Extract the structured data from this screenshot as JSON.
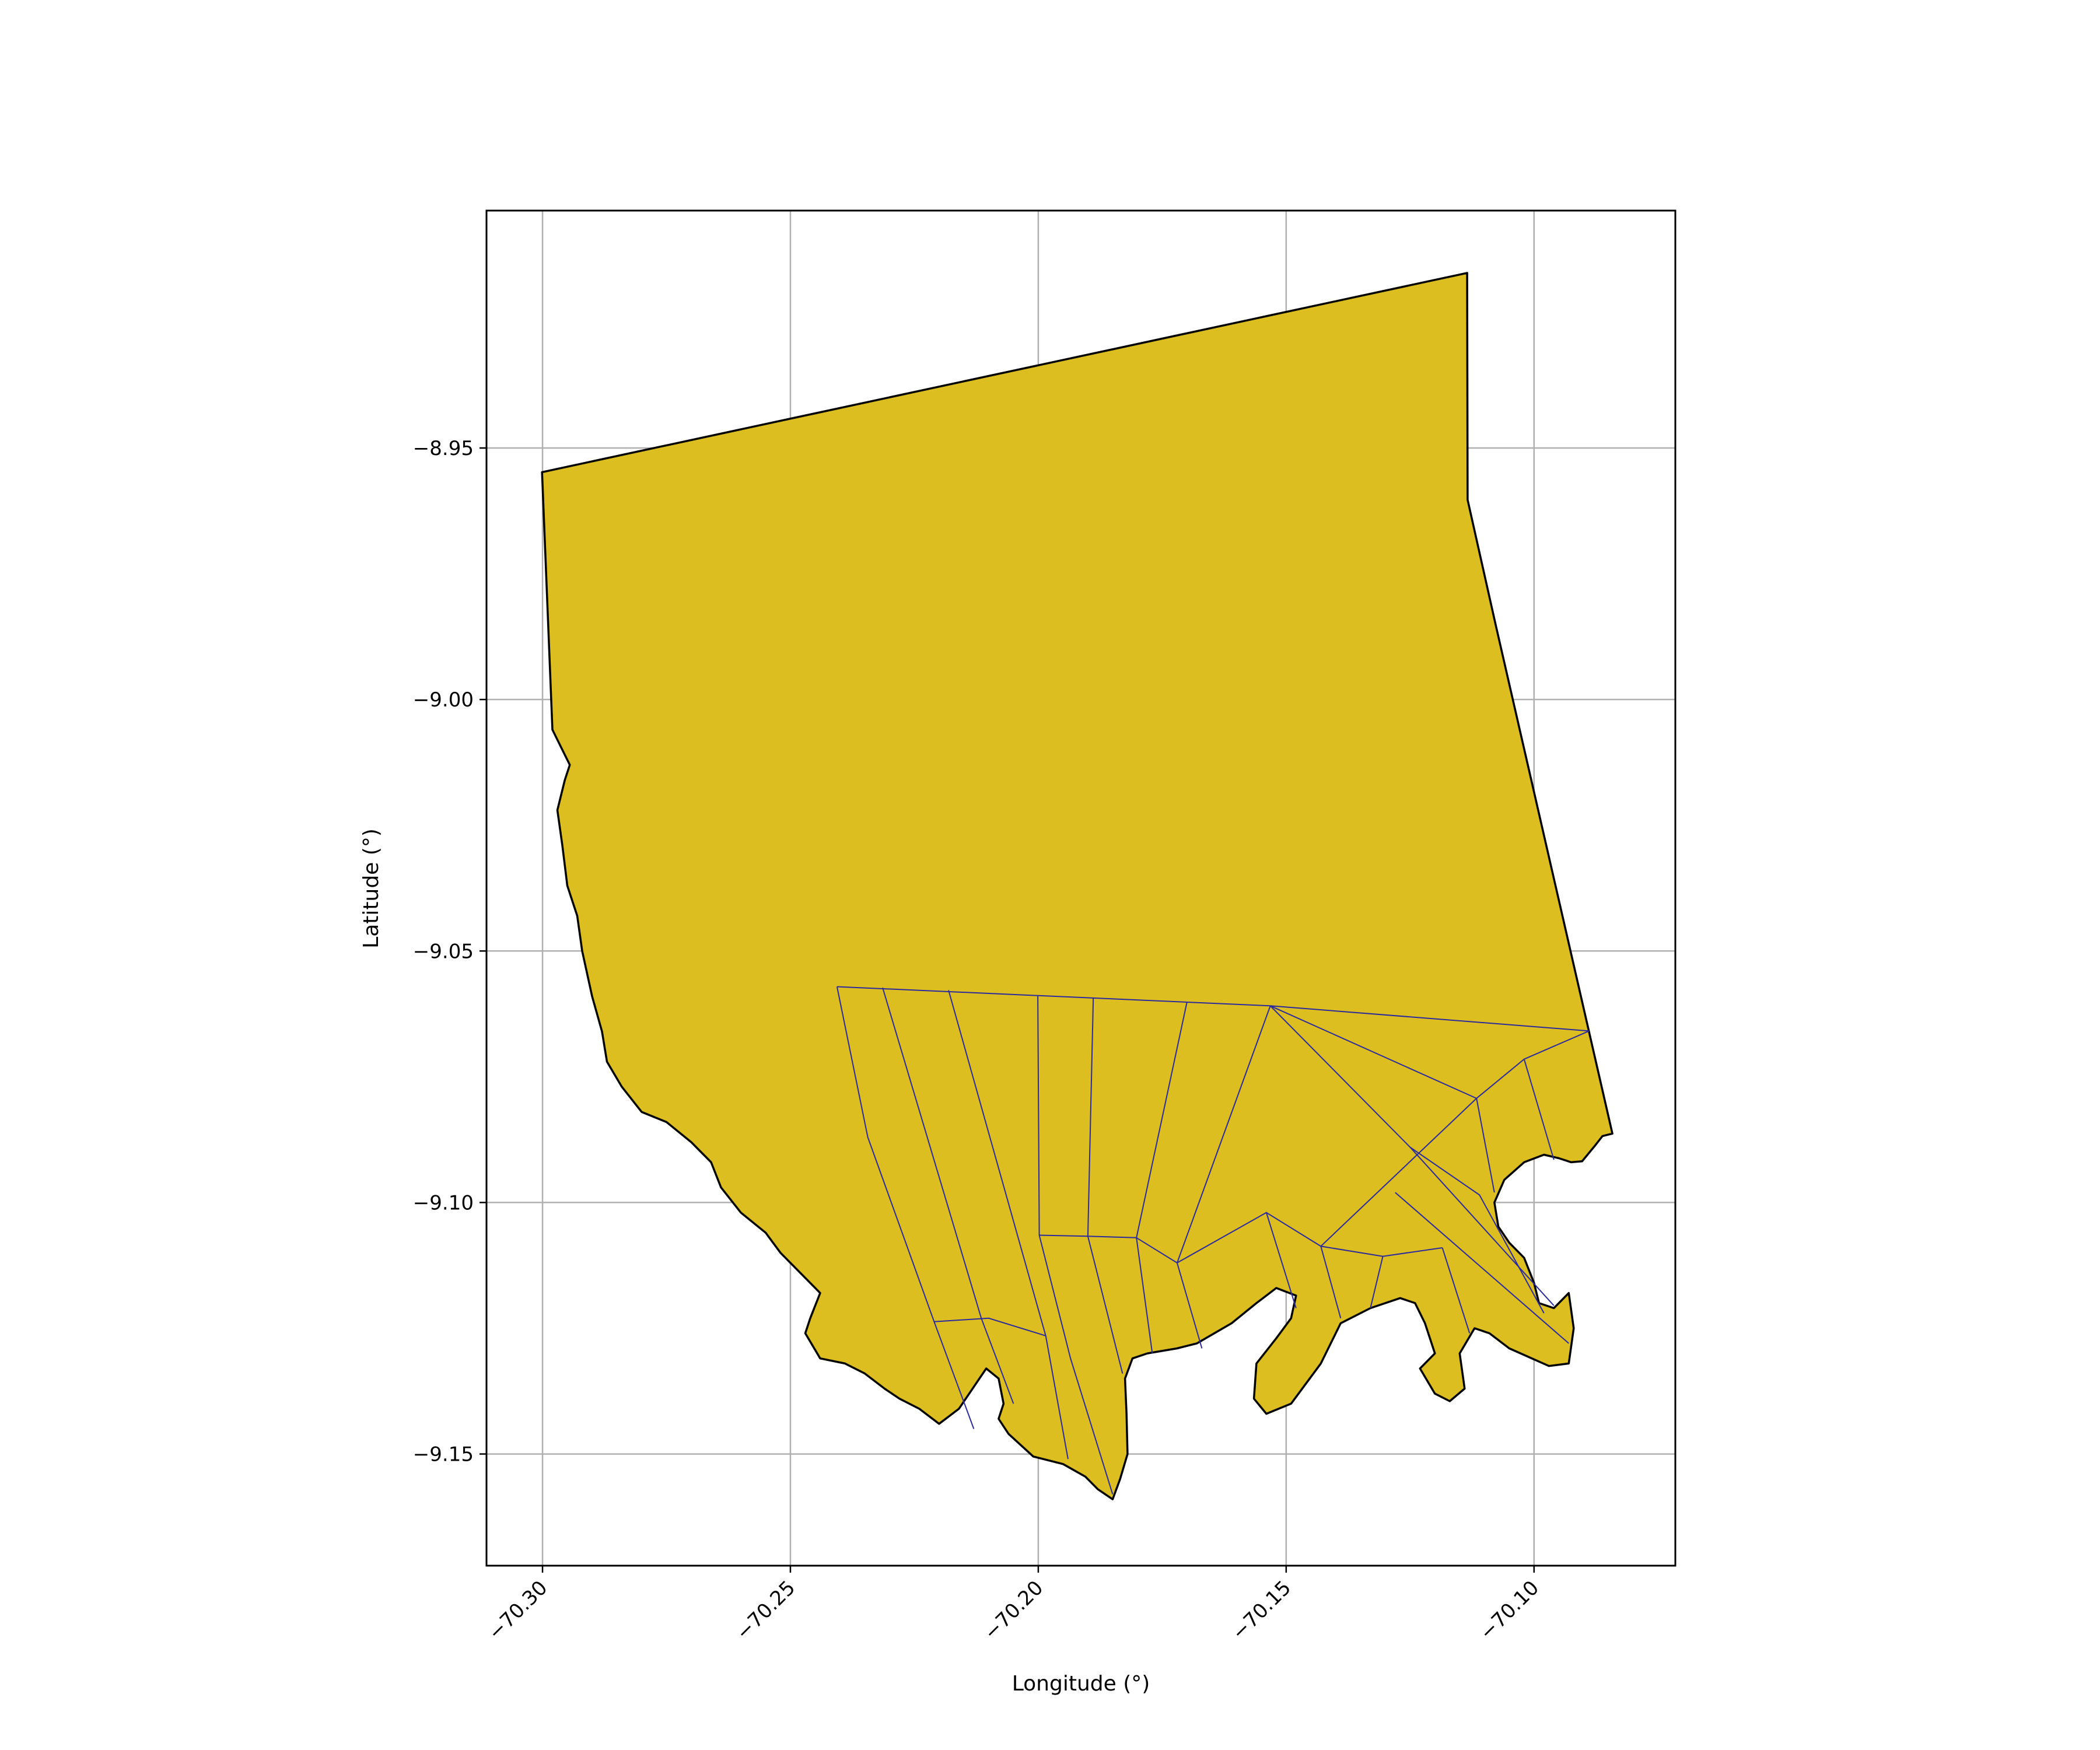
{
  "chart_data": {
    "type": "map",
    "title": "",
    "xlabel": "Longitude (°)",
    "ylabel": "Latitude (°)",
    "xlim": [
      -70.3113,
      -70.0715
    ],
    "ylim": [
      -9.1722,
      -8.9028
    ],
    "grid": true,
    "x_ticks": [
      {
        "value": -70.3,
        "label": "−70.30"
      },
      {
        "value": -70.25,
        "label": "−70.25"
      },
      {
        "value": -70.2,
        "label": "−70.20"
      },
      {
        "value": -70.15,
        "label": "−70.15"
      },
      {
        "value": -70.1,
        "label": "−70.10"
      }
    ],
    "y_ticks": [
      {
        "value": -8.95,
        "label": "−8.95"
      },
      {
        "value": -9.0,
        "label": "−9.00"
      },
      {
        "value": -9.05,
        "label": "−9.05"
      },
      {
        "value": -9.1,
        "label": "−9.10"
      },
      {
        "value": -9.15,
        "label": "−9.15"
      }
    ],
    "colors": {
      "region_fill": "#dcbe20",
      "boundary": "#000000",
      "subdivision": "#2a2a9e",
      "grid": "#b0b0b0",
      "axes": "#000000"
    },
    "boundary": [
      [
        -70.3001,
        -8.9548
      ],
      [
        -70.1135,
        -8.9152
      ],
      [
        -70.1134,
        -8.9603
      ],
      [
        -70.1077,
        -8.9853
      ],
      [
        -70.0842,
        -9.0863
      ],
      [
        -70.0862,
        -9.0868
      ],
      [
        -70.0878,
        -9.0888
      ],
      [
        -70.0903,
        -9.0918
      ],
      [
        -70.0925,
        -9.092
      ],
      [
        -70.095,
        -9.0912
      ],
      [
        -70.098,
        -9.0905
      ],
      [
        -70.102,
        -9.092
      ],
      [
        -70.106,
        -9.0955
      ],
      [
        -70.108,
        -9.1
      ],
      [
        -70.1072,
        -9.1048
      ],
      [
        -70.105,
        -9.108
      ],
      [
        -70.102,
        -9.111
      ],
      [
        -70.1,
        -9.116
      ],
      [
        -70.099,
        -9.12
      ],
      [
        -70.096,
        -9.121
      ],
      [
        -70.093,
        -9.118
      ],
      [
        -70.092,
        -9.125
      ],
      [
        -70.093,
        -9.132
      ],
      [
        -70.097,
        -9.1325
      ],
      [
        -70.105,
        -9.129
      ],
      [
        -70.109,
        -9.126
      ],
      [
        -70.112,
        -9.125
      ],
      [
        -70.115,
        -9.13
      ],
      [
        -70.114,
        -9.137
      ],
      [
        -70.117,
        -9.1395
      ],
      [
        -70.12,
        -9.138
      ],
      [
        -70.123,
        -9.133
      ],
      [
        -70.12,
        -9.13
      ],
      [
        -70.122,
        -9.124
      ],
      [
        -70.124,
        -9.12
      ],
      [
        -70.127,
        -9.119
      ],
      [
        -70.133,
        -9.121
      ],
      [
        -70.139,
        -9.124
      ],
      [
        -70.143,
        -9.132
      ],
      [
        -70.149,
        -9.14
      ],
      [
        -70.154,
        -9.142
      ],
      [
        -70.1565,
        -9.139
      ],
      [
        -70.156,
        -9.132
      ],
      [
        -70.152,
        -9.127
      ],
      [
        -70.149,
        -9.123
      ],
      [
        -70.148,
        -9.1185
      ],
      [
        -70.152,
        -9.117
      ],
      [
        -70.156,
        -9.12
      ],
      [
        -70.161,
        -9.124
      ],
      [
        -70.168,
        -9.128
      ],
      [
        -70.172,
        -9.129
      ],
      [
        -70.178,
        -9.13
      ],
      [
        -70.181,
        -9.131
      ],
      [
        -70.1825,
        -9.135
      ],
      [
        -70.1822,
        -9.142
      ],
      [
        -70.182,
        -9.15
      ],
      [
        -70.1835,
        -9.155
      ],
      [
        -70.185,
        -9.159
      ],
      [
        -70.188,
        -9.157
      ],
      [
        -70.1905,
        -9.1545
      ],
      [
        -70.195,
        -9.152
      ],
      [
        -70.201,
        -9.1505
      ],
      [
        -70.206,
        -9.146
      ],
      [
        -70.208,
        -9.143
      ],
      [
        -70.207,
        -9.14
      ],
      [
        -70.208,
        -9.135
      ],
      [
        -70.2105,
        -9.133
      ],
      [
        -70.216,
        -9.141
      ],
      [
        -70.22,
        -9.144
      ],
      [
        -70.224,
        -9.141
      ],
      [
        -70.228,
        -9.139
      ],
      [
        -70.231,
        -9.137
      ],
      [
        -70.235,
        -9.134
      ],
      [
        -70.239,
        -9.132
      ],
      [
        -70.244,
        -9.131
      ],
      [
        -70.247,
        -9.126
      ],
      [
        -70.246,
        -9.123
      ],
      [
        -70.244,
        -9.118
      ],
      [
        -70.248,
        -9.114
      ],
      [
        -70.252,
        -9.11
      ],
      [
        -70.255,
        -9.106
      ],
      [
        -70.26,
        -9.102
      ],
      [
        -70.264,
        -9.097
      ],
      [
        -70.266,
        -9.092
      ],
      [
        -70.27,
        -9.088
      ],
      [
        -70.275,
        -9.084
      ],
      [
        -70.28,
        -9.082
      ],
      [
        -70.284,
        -9.077
      ],
      [
        -70.287,
        -9.072
      ],
      [
        -70.288,
        -9.066
      ],
      [
        -70.29,
        -9.059
      ],
      [
        -70.292,
        -9.05
      ],
      [
        -70.293,
        -9.043
      ],
      [
        -70.295,
        -9.037
      ],
      [
        -70.296,
        -9.029
      ],
      [
        -70.297,
        -9.022
      ],
      [
        -70.2955,
        -9.016
      ],
      [
        -70.2945,
        -9.013
      ],
      [
        -70.296,
        -9.01
      ],
      [
        -70.298,
        -9.006
      ],
      [
        -70.3001,
        -8.9548
      ]
    ],
    "subdivisions": [
      [
        [
          -70.2406,
          -9.0571
        ],
        [
          -70.1532,
          -9.0609
        ],
        [
          -70.0889,
          -9.0659
        ]
      ],
      [
        [
          -70.2406,
          -9.0571
        ],
        [
          -70.2344,
          -9.087
        ],
        [
          -70.221,
          -9.1237
        ],
        [
          -70.213,
          -9.145
        ]
      ],
      [
        [
          -70.2314,
          -9.0573
        ],
        [
          -70.2115,
          -9.123
        ],
        [
          -70.205,
          -9.14
        ]
      ],
      [
        [
          -70.2181,
          -9.0578
        ],
        [
          -70.1985,
          -9.1265
        ],
        [
          -70.194,
          -9.151
        ]
      ],
      [
        [
          -70.221,
          -9.1237
        ],
        [
          -70.21,
          -9.123
        ],
        [
          -70.1985,
          -9.1265
        ]
      ],
      [
        [
          -70.2001,
          -9.059
        ],
        [
          -70.1998,
          -9.1065
        ],
        [
          -70.1935,
          -9.131
        ],
        [
          -70.185,
          -9.158
        ]
      ],
      [
        [
          -70.1889,
          -9.0594
        ],
        [
          -70.19,
          -9.1067
        ],
        [
          -70.183,
          -9.134
        ]
      ],
      [
        [
          -70.1998,
          -9.1065
        ],
        [
          -70.19,
          -9.1067
        ],
        [
          -70.1802,
          -9.107
        ]
      ],
      [
        [
          -70.17,
          -9.0601
        ],
        [
          -70.1802,
          -9.107
        ],
        [
          -70.177,
          -9.13
        ]
      ],
      [
        [
          -70.1532,
          -9.0609
        ],
        [
          -70.172,
          -9.112
        ],
        [
          -70.167,
          -9.129
        ]
      ],
      [
        [
          -70.1802,
          -9.107
        ],
        [
          -70.172,
          -9.112
        ],
        [
          -70.154,
          -9.102
        ],
        [
          -70.143,
          -9.1087
        ],
        [
          -70.1305,
          -9.1107
        ],
        [
          -70.1185,
          -9.109
        ]
      ],
      [
        [
          -70.154,
          -9.102
        ],
        [
          -70.148,
          -9.121
        ]
      ],
      [
        [
          -70.1532,
          -9.0609
        ],
        [
          -70.125,
          -9.089
        ],
        [
          -70.111,
          -9.0985
        ],
        [
          -70.098,
          -9.122
        ]
      ],
      [
        [
          -70.1532,
          -9.0609
        ],
        [
          -70.1116,
          -9.0793
        ],
        [
          -70.143,
          -9.1087
        ],
        [
          -70.139,
          -9.123
        ]
      ],
      [
        [
          -70.1116,
          -9.0793
        ],
        [
          -70.102,
          -9.0715
        ],
        [
          -70.0889,
          -9.0659
        ]
      ],
      [
        [
          -70.1116,
          -9.0793
        ],
        [
          -70.108,
          -9.098
        ]
      ],
      [
        [
          -70.102,
          -9.0715
        ],
        [
          -70.096,
          -9.0915
        ]
      ],
      [
        [
          -70.125,
          -9.089
        ],
        [
          -70.096,
          -9.1205
        ]
      ],
      [
        [
          -70.128,
          -9.098
        ],
        [
          -70.093,
          -9.128
        ]
      ],
      [
        [
          -70.1305,
          -9.1107
        ],
        [
          -70.133,
          -9.121
        ]
      ],
      [
        [
          -70.1185,
          -9.109
        ],
        [
          -70.113,
          -9.126
        ]
      ]
    ]
  }
}
